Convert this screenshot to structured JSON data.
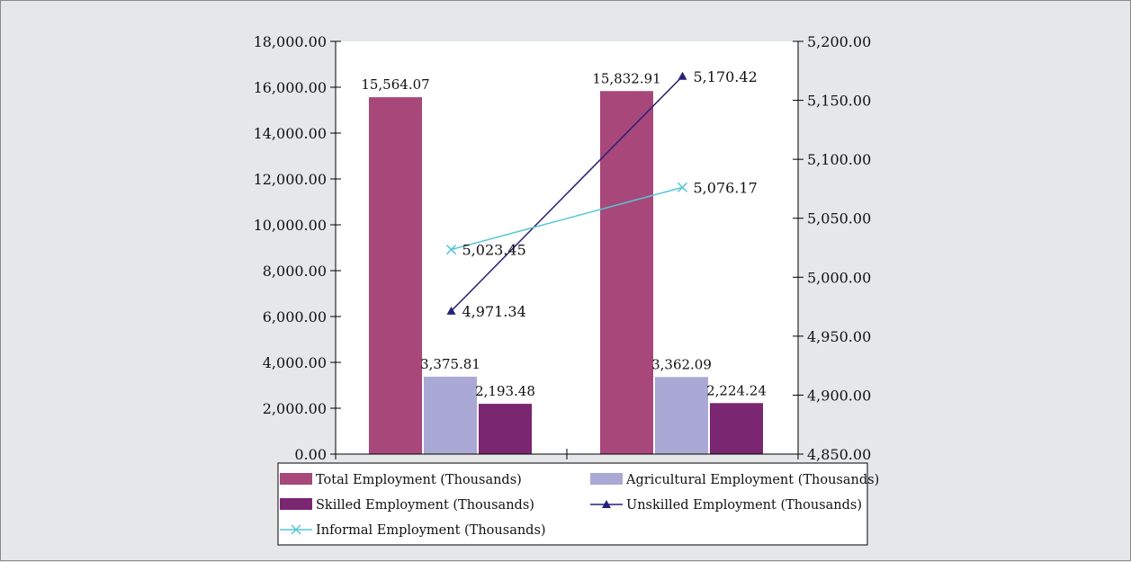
{
  "chart_data": {
    "type": "bar",
    "title": "",
    "xlabel": "",
    "ylabel": "",
    "categories": [
      "",
      ""
    ],
    "ylim": [
      0,
      18000
    ],
    "y_ticks": [
      "0.00",
      "2,000.00",
      "4,000.00",
      "6,000.00",
      "8,000.00",
      "10,000.00",
      "12,000.00",
      "14,000.00",
      "16,000.00",
      "18,000.00"
    ],
    "y2lim": [
      4850,
      5200
    ],
    "y2_ticks": [
      "4,850.00",
      "4,900.00",
      "4,950.00",
      "5,000.00",
      "5,050.00",
      "5,100.00",
      "5,150.00",
      "5,200.00"
    ],
    "grid": false,
    "legend_position": "bottom",
    "series": [
      {
        "name": "Total Employment (Thousands)",
        "kind": "bar",
        "axis": "left",
        "color": "#a8477a",
        "values": [
          15564.07,
          15832.91
        ],
        "labels": [
          "15,564.07",
          "15,832.91"
        ]
      },
      {
        "name": "Agricultural Employment (Thousands)",
        "kind": "bar",
        "axis": "left",
        "color": "#aaa8d4",
        "values": [
          3375.81,
          3362.09
        ],
        "labels": [
          "3,375.81",
          "3,362.09"
        ]
      },
      {
        "name": "Skilled Employment (Thousands)",
        "kind": "bar",
        "axis": "left",
        "color": "#7a2670",
        "values": [
          2193.48,
          2224.24
        ],
        "labels": [
          "2,193.48",
          "2,224.24"
        ]
      },
      {
        "name": "Unskilled Employment (Thousands)",
        "kind": "line",
        "axis": "right",
        "color": "#27217a",
        "marker": "triangle",
        "values": [
          4971.34,
          5170.42
        ],
        "labels": [
          "4,971.34",
          "5,170.42"
        ]
      },
      {
        "name": "Informal Employment (Thousands)",
        "kind": "line",
        "axis": "right",
        "color": "#55c6d8",
        "marker": "x",
        "values": [
          5023.45,
          5076.17
        ],
        "labels": [
          "5,023.45",
          "5,076.17"
        ]
      }
    ]
  }
}
